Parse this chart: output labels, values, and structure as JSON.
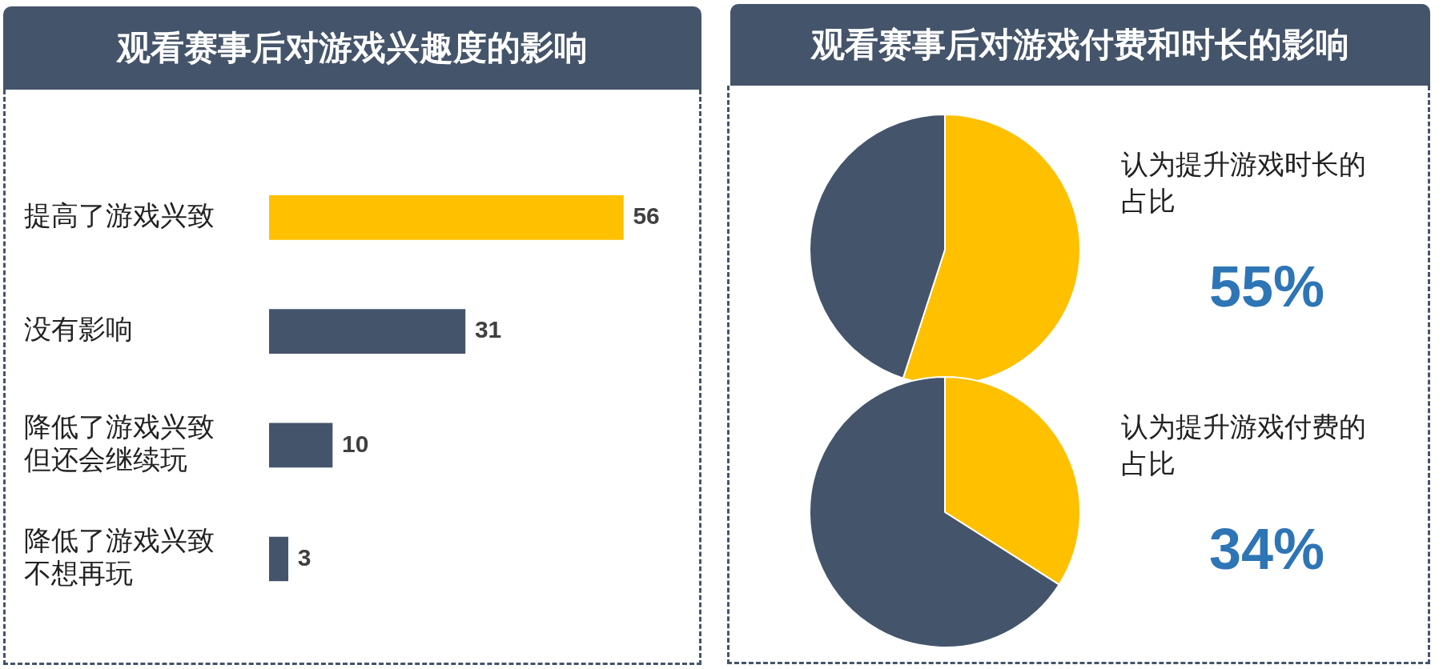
{
  "chart_data": [
    {
      "type": "bar",
      "orientation": "horizontal",
      "title": "观看赛事后对游戏兴趣度的影响",
      "categories": [
        "提高了游戏兴致",
        "没有影响",
        "降低了游戏兴致但还会继续玩",
        "降低了游戏兴致不想再玩"
      ],
      "values": [
        56,
        31,
        10,
        3
      ],
      "colors": [
        "#ffc000",
        "#44546a",
        "#44546a",
        "#44546a"
      ],
      "data_labels": true
    },
    {
      "type": "pie",
      "title": "观看赛事后对游戏付费和时长的影响",
      "subtitle": "认为提升游戏时长的占比",
      "categories": [
        null,
        null
      ],
      "values": [
        55,
        45
      ],
      "colors": [
        "#ffc000",
        "#44546a"
      ],
      "value_labels": [
        "55%",
        null
      ]
    },
    {
      "type": "pie",
      "subtitle": "认为提升游戏付费的占比",
      "categories": [
        null,
        null
      ],
      "values": [
        34,
        66
      ],
      "colors": [
        "#ffc000",
        "#44546a"
      ],
      "value_labels": [
        "34%",
        null
      ]
    }
  ]
}
